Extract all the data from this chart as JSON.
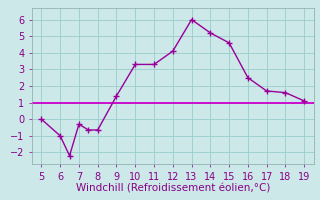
{
  "x": [
    5,
    6,
    6.5,
    7,
    7.5,
    8,
    9,
    10,
    11,
    12,
    13,
    14,
    15,
    16,
    17,
    18,
    19
  ],
  "y": [
    0.0,
    -1.0,
    -2.2,
    -0.3,
    -0.65,
    -0.65,
    1.4,
    3.3,
    3.3,
    4.1,
    6.0,
    5.2,
    4.6,
    2.5,
    1.7,
    1.6,
    1.1
  ],
  "hline_y": 1.0,
  "line_color": "#990099",
  "hline_color": "#cc00cc",
  "bg_color": "#cce8e8",
  "grid_color": "#99cccc",
  "xlabel": "Windchill (Refroidissement éolien,°C)",
  "xlim": [
    4.5,
    19.5
  ],
  "ylim": [
    -2.7,
    6.7
  ],
  "xticks": [
    5,
    6,
    7,
    8,
    9,
    10,
    11,
    12,
    13,
    14,
    15,
    16,
    17,
    18,
    19
  ],
  "yticks": [
    -2,
    -1,
    0,
    1,
    2,
    3,
    4,
    5,
    6
  ],
  "marker": "+",
  "markersize": 4,
  "linewidth": 1.0,
  "xlabel_fontsize": 7.5,
  "tick_fontsize": 7,
  "tick_color": "#880088"
}
